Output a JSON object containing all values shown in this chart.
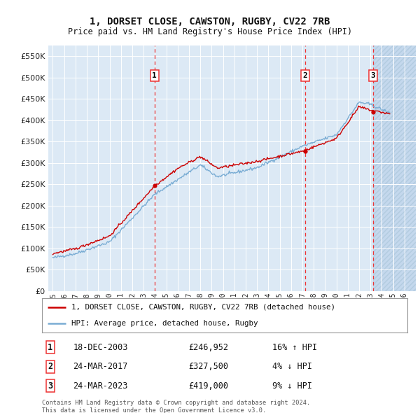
{
  "title": "1, DORSET CLOSE, CAWSTON, RUGBY, CV22 7RB",
  "subtitle": "Price paid vs. HM Land Registry's House Price Index (HPI)",
  "ylim": [
    0,
    575000
  ],
  "yticks": [
    0,
    50000,
    100000,
    150000,
    200000,
    250000,
    300000,
    350000,
    400000,
    450000,
    500000,
    550000
  ],
  "xlim_start": 1994.6,
  "xlim_end": 2027.0,
  "transactions": [
    {
      "num": 1,
      "date": "18-DEC-2003",
      "price": 246952,
      "pct": "16%",
      "dir": "↑",
      "x": 2003.96
    },
    {
      "num": 2,
      "date": "24-MAR-2017",
      "price": 327500,
      "pct": "4%",
      "dir": "↓",
      "x": 2017.23
    },
    {
      "num": 3,
      "date": "24-MAR-2023",
      "price": 419000,
      "pct": "9%",
      "dir": "↓",
      "x": 2023.23
    }
  ],
  "legend_label_red": "1, DORSET CLOSE, CAWSTON, RUGBY, CV22 7RB (detached house)",
  "legend_label_blue": "HPI: Average price, detached house, Rugby",
  "footnote": "Contains HM Land Registry data © Crown copyright and database right 2024.\nThis data is licensed under the Open Government Licence v3.0.",
  "red_color": "#cc0000",
  "blue_color": "#7aadd4",
  "bg_color": "#dce9f5",
  "hatch_color": "#c4d8ed",
  "grid_color": "#ffffff",
  "dashed_color": "#ee3333"
}
